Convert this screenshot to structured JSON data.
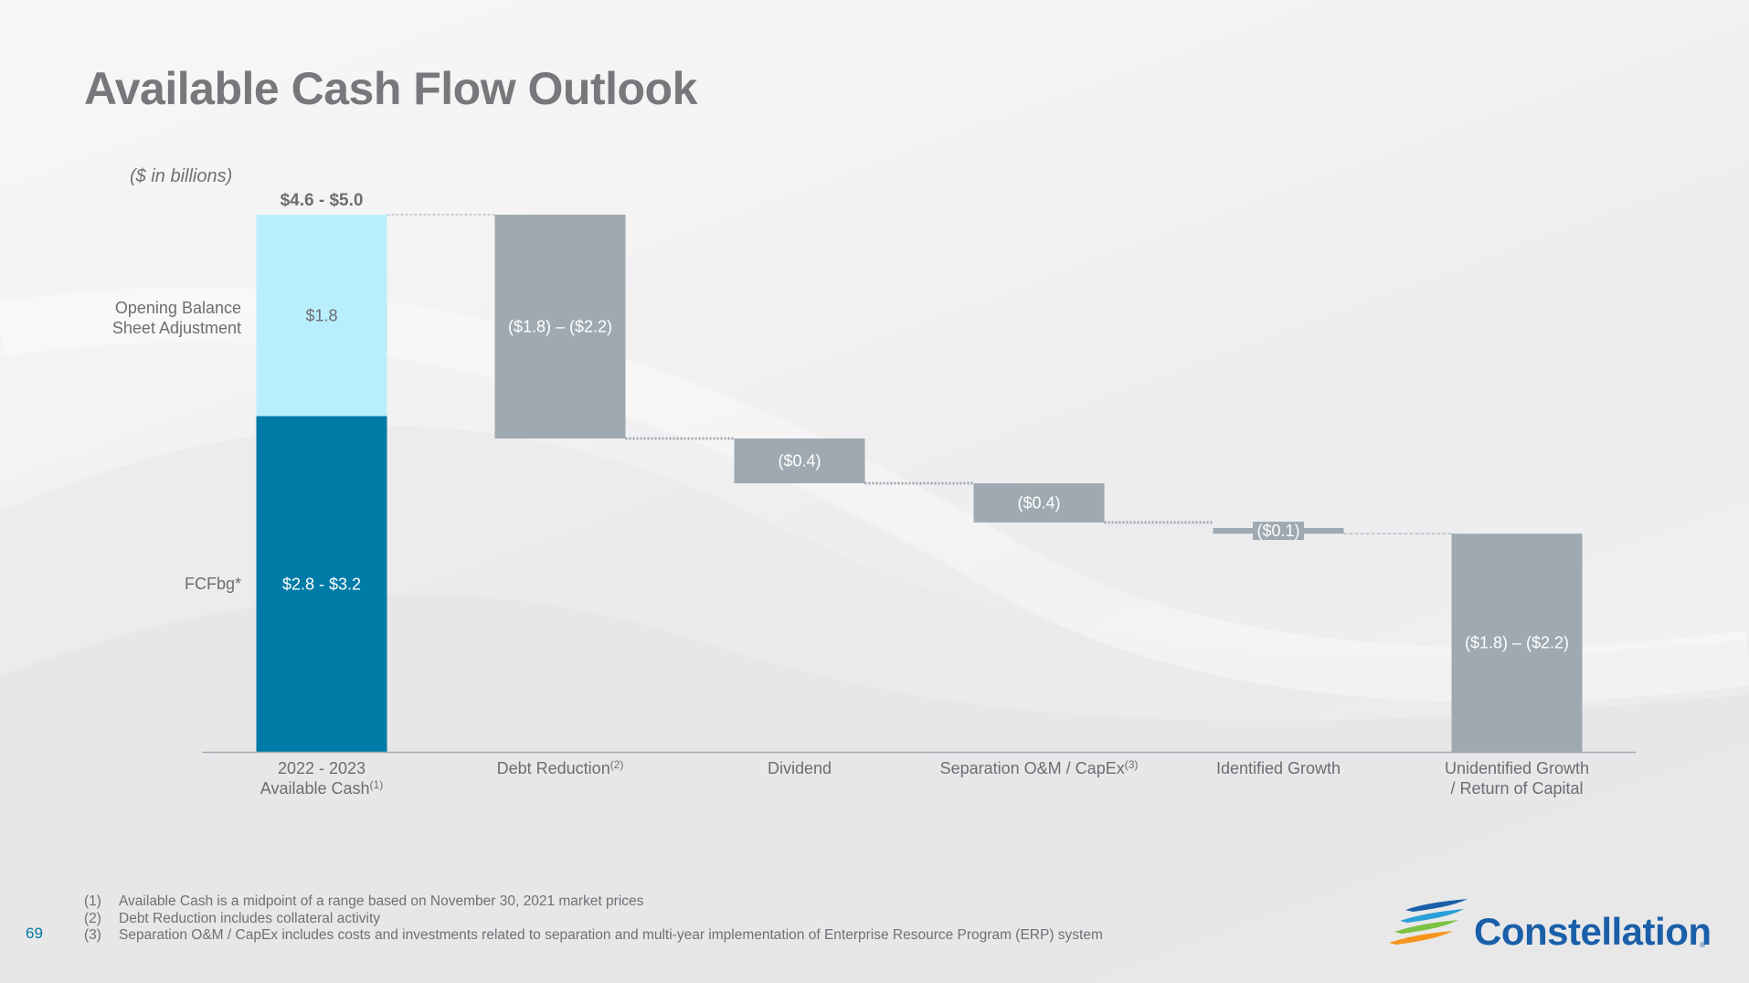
{
  "slide": {
    "title": "Available Cash Flow Outlook",
    "units_note": "($ in billions)",
    "page_number": "69"
  },
  "chart_data": {
    "type": "waterfall",
    "title": "Available Cash Flow Outlook",
    "units": "($ in billions)",
    "grid": false,
    "ylim": [
      0,
      5.0
    ],
    "total_label": "$4.6 - $5.0",
    "categories": [
      {
        "line1": "2022 - 2023",
        "line2": "Available Cash",
        "sup": "(1)"
      },
      {
        "line1": "Debt Reduction",
        "line2": "",
        "sup": "(2)"
      },
      {
        "line1": "Dividend",
        "line2": "",
        "sup": ""
      },
      {
        "line1": "Separation O&M / CapEx",
        "line2": "",
        "sup": "(3)"
      },
      {
        "line1": "Identified Growth",
        "line2": "",
        "sup": ""
      },
      {
        "line1": "Unidentified Growth",
        "line2": "/ Return of Capital",
        "sup": ""
      }
    ],
    "stack_labels": [
      {
        "line1": "Opening Balance",
        "line2": "Sheet Adjustment"
      },
      {
        "line1": "FCFbg*",
        "line2": ""
      }
    ],
    "bars": [
      {
        "category_index": 0,
        "kind": "stack",
        "segment": "FCFbg*",
        "start": 0,
        "end": 3.0,
        "label": "$2.8 - $3.2",
        "color": "#007ba7",
        "label_color": "#ffffff"
      },
      {
        "category_index": 0,
        "kind": "stack",
        "segment": "Opening Balance Sheet Adjustment",
        "start": 3.0,
        "end": 4.8,
        "label": "$1.8",
        "color": "#b9eefc",
        "label_color": "#6b6e71"
      },
      {
        "category_index": 1,
        "kind": "decrease",
        "start": 4.8,
        "end": 2.8,
        "label": "($1.8) – ($2.2)",
        "color": "#9ea9b1",
        "label_color": "#ffffff"
      },
      {
        "category_index": 2,
        "kind": "decrease",
        "start": 2.8,
        "end": 2.4,
        "label": "($0.4)",
        "color": "#9ea9b1",
        "label_color": "#ffffff"
      },
      {
        "category_index": 3,
        "kind": "decrease",
        "start": 2.4,
        "end": 2.05,
        "label": "($0.4)",
        "color": "#9ea9b1",
        "label_color": "#ffffff"
      },
      {
        "category_index": 4,
        "kind": "decrease",
        "start": 2.0,
        "end": 1.95,
        "label": "($0.1)",
        "color": "#9ea9b1",
        "label_color": "#ffffff"
      },
      {
        "category_index": 5,
        "kind": "decrease",
        "start": 1.95,
        "end": 0,
        "label": "($1.8) – ($2.2)",
        "color": "#9ea9b1",
        "label_color": "#ffffff"
      }
    ],
    "colors": {
      "fcfbg": "#007ba7",
      "opening_adjustment": "#b9eefc",
      "decrease": "#9ea9b1",
      "axis": "#a3abb2",
      "text": "#6b6e71"
    }
  },
  "footnotes": [
    {
      "num": "(1)",
      "text": "Available Cash is a midpoint of a range based on November 30, 2021 market prices"
    },
    {
      "num": "(2)",
      "text": "Debt Reduction includes collateral activity"
    },
    {
      "num": "(3)",
      "text": "Separation O&M / CapEx includes costs and investments related to separation and multi-year implementation of Enterprise Resource Program (ERP) system"
    }
  ],
  "logo": {
    "name": "Constellation",
    "mark": "®",
    "colors": [
      "#1a5fa8",
      "#2a9fd8",
      "#7cc243",
      "#f7941d"
    ]
  }
}
